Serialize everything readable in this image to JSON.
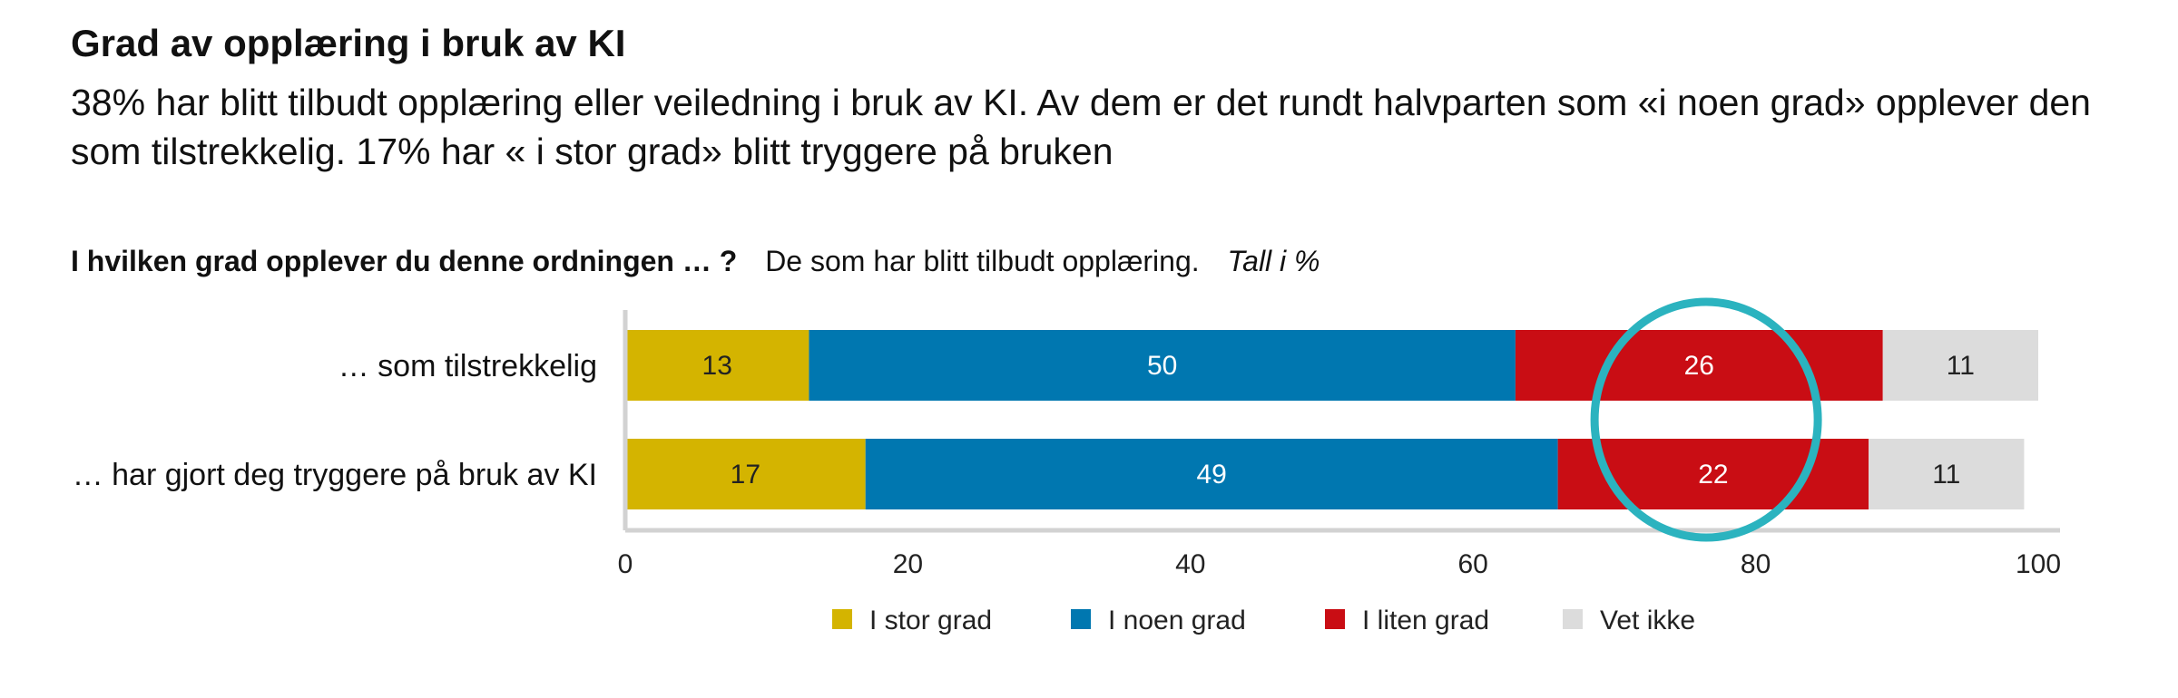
{
  "header": {
    "title": "Grad av opplæring i bruk av KI",
    "subtitle": "38% har blitt tilbudt opplæring eller veiledning i bruk av KI. Av dem er det rundt halvparten som «i noen grad» opplever den som tilstrekkelig. 17% har « i stor grad» blitt tryggere på bruken"
  },
  "question": {
    "text": "I hvilken grad opplever du denne ordningen … ?",
    "base": "De som har blitt tilbudt opplæring.",
    "unit": "Tall i %"
  },
  "chart_data": {
    "type": "bar",
    "orientation": "horizontal",
    "stacked": true,
    "categories": [
      "… som tilstrekkelig",
      "… har gjort deg tryggere på bruk av KI"
    ],
    "series": [
      {
        "name": "I stor grad",
        "color": "#d4b400",
        "label_color": "#222222",
        "values": [
          13,
          17
        ]
      },
      {
        "name": "I noen grad",
        "color": "#0077b0",
        "label_color": "#ffffff",
        "values": [
          50,
          49
        ]
      },
      {
        "name": "I liten grad",
        "color": "#c90d14",
        "label_color": "#ffffff",
        "values": [
          26,
          22
        ]
      },
      {
        "name": "Vet ikke",
        "color": "#dcdcdc",
        "label_color": "#222222",
        "values": [
          11,
          11
        ]
      }
    ],
    "xlim": [
      0,
      100
    ],
    "x_ticks": [
      0,
      20,
      40,
      60,
      80,
      100
    ],
    "grid": false,
    "legend": "bottom",
    "highlight": {
      "shape": "circle",
      "color": "#2bb3bf",
      "target_series": "I liten grad"
    }
  }
}
